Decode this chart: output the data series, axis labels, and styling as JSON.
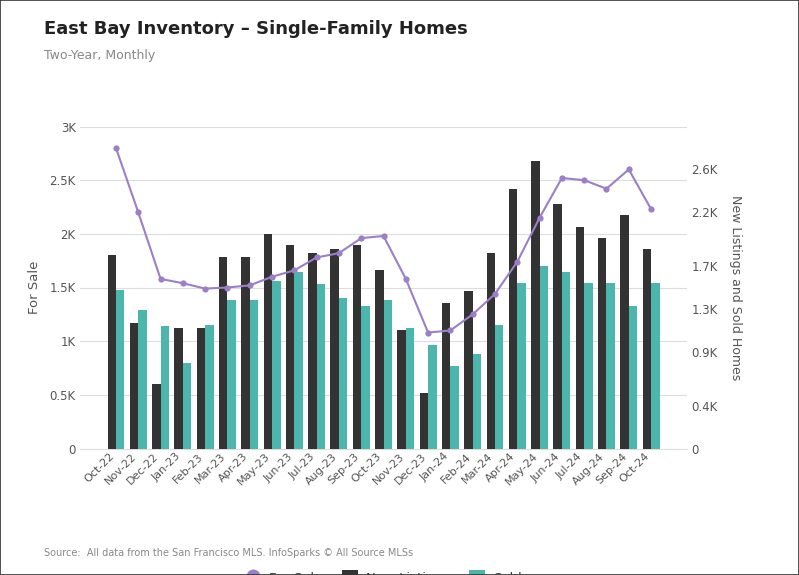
{
  "title": "East Bay Inventory – Single-Family Homes",
  "subtitle": "Two-Year, Monthly",
  "source": "Source:  All data from the San Francisco MLS. InfoSparks © All Source MLSs",
  "categories": [
    "Oct-22",
    "Nov-22",
    "Dec-22",
    "Jan-23",
    "Feb-23",
    "Mar-23",
    "Apr-23",
    "May-23",
    "Jun-23",
    "Jul-23",
    "Aug-23",
    "Sep-23",
    "Oct-23",
    "Nov-23",
    "Dec-23",
    "Jan-24",
    "Feb-24",
    "Mar-24",
    "Apr-24",
    "May-24",
    "Jun-24",
    "Jul-24",
    "Aug-24",
    "Sep-24",
    "Oct-24"
  ],
  "for_sale": [
    2800,
    2200,
    1580,
    1540,
    1490,
    1500,
    1520,
    1600,
    1660,
    1780,
    1820,
    1960,
    1980,
    1580,
    1080,
    1100,
    1250,
    1440,
    1740,
    2150,
    2520,
    2500,
    2420,
    2600,
    2230
  ],
  "new_listings": [
    1800,
    1170,
    600,
    1120,
    1120,
    1780,
    1780,
    2000,
    1900,
    1820,
    1860,
    1900,
    1660,
    1100,
    520,
    1360,
    1470,
    1820,
    2420,
    2680,
    2280,
    2060,
    1960,
    2180,
    1860
  ],
  "sold": [
    1480,
    1290,
    1140,
    800,
    1150,
    1380,
    1380,
    1560,
    1640,
    1530,
    1400,
    1330,
    1380,
    1120,
    960,
    770,
    880,
    1150,
    1540,
    1700,
    1640,
    1540,
    1540,
    1330,
    1540
  ],
  "for_sale_color": "#9b7fc7",
  "new_listings_color": "#333333",
  "sold_color": "#4db6ac",
  "background_color": "#ffffff",
  "grid_color": "#dddddd",
  "tick_label_color": "#555555",
  "border_color": "#333333"
}
